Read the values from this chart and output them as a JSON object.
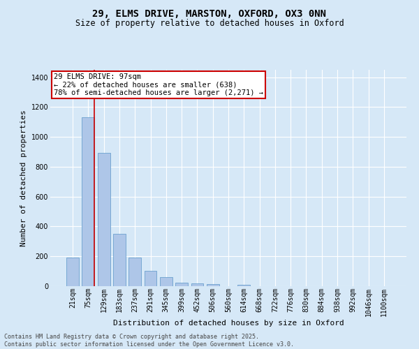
{
  "title_line1": "29, ELMS DRIVE, MARSTON, OXFORD, OX3 0NN",
  "title_line2": "Size of property relative to detached houses in Oxford",
  "xlabel": "Distribution of detached houses by size in Oxford",
  "ylabel": "Number of detached properties",
  "categories": [
    "21sqm",
    "75sqm",
    "129sqm",
    "183sqm",
    "237sqm",
    "291sqm",
    "345sqm",
    "399sqm",
    "452sqm",
    "506sqm",
    "560sqm",
    "614sqm",
    "668sqm",
    "722sqm",
    "776sqm",
    "830sqm",
    "884sqm",
    "938sqm",
    "992sqm",
    "1046sqm",
    "1100sqm"
  ],
  "values": [
    193,
    1130,
    893,
    350,
    193,
    103,
    60,
    25,
    20,
    13,
    0,
    8,
    0,
    0,
    0,
    0,
    0,
    0,
    0,
    0,
    0
  ],
  "bar_color": "#aec6e8",
  "bar_edge_color": "#5a96c8",
  "property_sqm": 97,
  "pct_smaller": 22,
  "n_smaller": 638,
  "pct_larger": 78,
  "n_larger": 2271,
  "vline_color": "#cc0000",
  "annotation_box_color": "#cc0000",
  "background_color": "#d6e8f7",
  "plot_bg_color": "#d6e8f7",
  "footer_line1": "Contains HM Land Registry data © Crown copyright and database right 2025.",
  "footer_line2": "Contains public sector information licensed under the Open Government Licence v3.0.",
  "ylim": [
    0,
    1450
  ],
  "yticks": [
    0,
    200,
    400,
    600,
    800,
    1000,
    1200,
    1400
  ],
  "title_fontsize": 10,
  "subtitle_fontsize": 8.5,
  "axis_label_fontsize": 8,
  "tick_fontsize": 7,
  "footer_fontsize": 6,
  "annotation_fontsize": 7.5
}
